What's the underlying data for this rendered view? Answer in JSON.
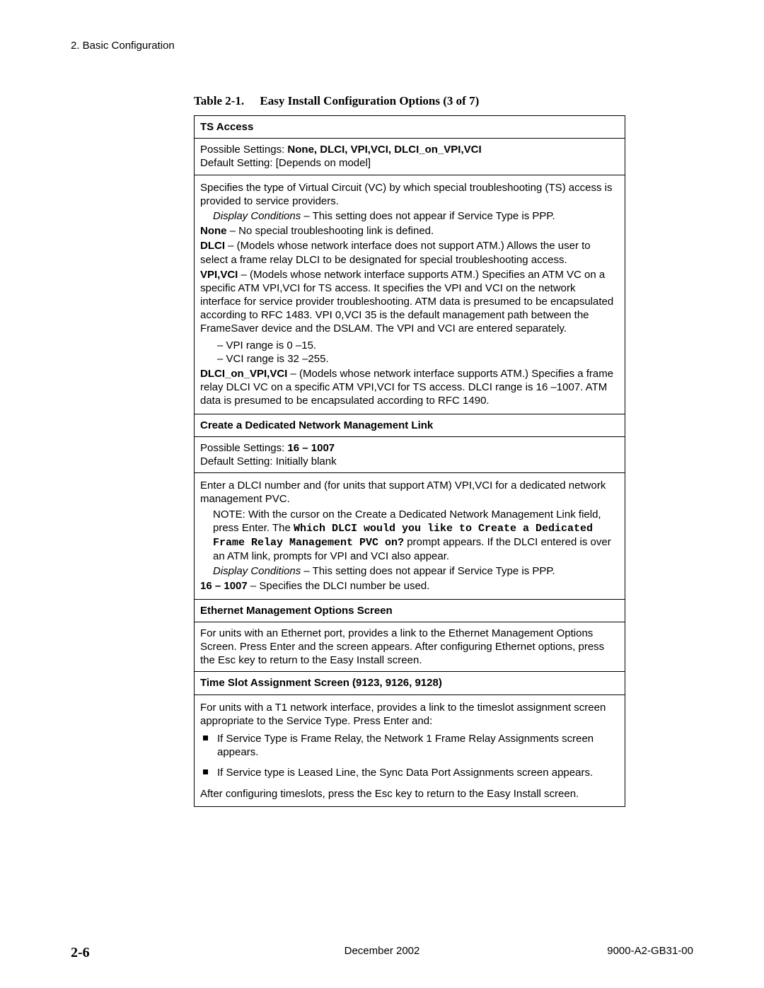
{
  "header": {
    "chapter": "2. Basic Configuration"
  },
  "table_caption": {
    "number": "Table 2-1.",
    "title": "Easy Install Configuration Options (3 of 7)"
  },
  "ts_access": {
    "heading": "TS Access",
    "possible_label": "Possible Settings: ",
    "possible_values": "None, DLCI, VPI,VCI, DLCI_on_VPI,VCI",
    "default": "Default Setting: [Depends on model]",
    "intro": "Specifies the type of Virtual Circuit (VC) by which special troubleshooting (TS) access is provided to service providers.",
    "display_label": "Display Conditions",
    "display_text": " – This setting does not appear if Service Type is PPP.",
    "none_label": "None",
    "none_text": " – No special troubleshooting link is defined.",
    "dlci_label": "DLCI",
    "dlci_text": " – (Models whose network interface does not support ATM.) Allows the user to select a frame relay DLCI to be designated for special troubleshooting access.",
    "vpi_label": "VPI,VCI",
    "vpi_text": " – (Models whose network interface supports ATM.) Specifies an ATM VC on a specific ATM VPI,VCI for TS access. It specifies the VPI and VCI on the network interface for service provider troubleshooting. ATM data is presumed to be encapsulated according to RFC 1483. VPI 0,VCI 35 is the default management path between the FrameSaver device and the DSLAM. The VPI and VCI are entered separately.",
    "vpi_range": "VPI range is 0 –15.",
    "vci_range": "VCI range is 32 –255.",
    "dlcion_label": "DLCI_on_VPI,VCI",
    "dlcion_text": " – (Models whose network interface supports ATM.) Specifies a frame relay DLCI VC on a specific ATM VPI,VCI for TS access. DLCI range is 16 –1007. ATM data is presumed to be encapsulated according to RFC 1490."
  },
  "dedicated": {
    "heading": "Create a Dedicated Network Management Link",
    "possible_label": "Possible Settings: ",
    "possible_values": "16 – 1007",
    "default": "Default Setting: Initially blank",
    "intro": "Enter a DLCI number and (for units that support ATM) VPI,VCI for a dedicated network management PVC.",
    "note_pre": "NOTE: With the cursor on the Create a Dedicated Network Management Link field, press Enter. The ",
    "note_mono": "Which DLCI would you like to Create a Dedicated Frame Relay Management PVC on?",
    "note_post": " prompt appears. If the DLCI entered is over an ATM link, prompts for VPI and VCI also appear.",
    "display_label": "Display Conditions",
    "display_text": " – This setting does not appear if Service Type is PPP.",
    "range_label": "16 – 1007",
    "range_text": " – Specifies the DLCI number be used."
  },
  "ethernet": {
    "heading": "Ethernet Management Options Screen",
    "body": "For units with an Ethernet port, provides a link to the Ethernet Management Options Screen. Press Enter and the screen appears. After configuring Ethernet options, press the Esc key to return to the Easy Install screen."
  },
  "timeslot": {
    "heading": "Time Slot Assignment Screen (9123, 9126, 9128)",
    "intro": "For units with a T1 network interface, provides a link to the timeslot assignment screen appropriate to the Service Type. Press Enter and:",
    "b1": "If Service Type is Frame Relay, the Network 1 Frame Relay Assignments screen appears.",
    "b2": "If Service type is Leased Line, the Sync Data Port Assignments screen appears.",
    "after": "After configuring timeslots, press the Esc key to return to the Easy Install screen."
  },
  "footer": {
    "page": "2-6",
    "date": "December 2002",
    "docid": "9000-A2-GB31-00"
  }
}
